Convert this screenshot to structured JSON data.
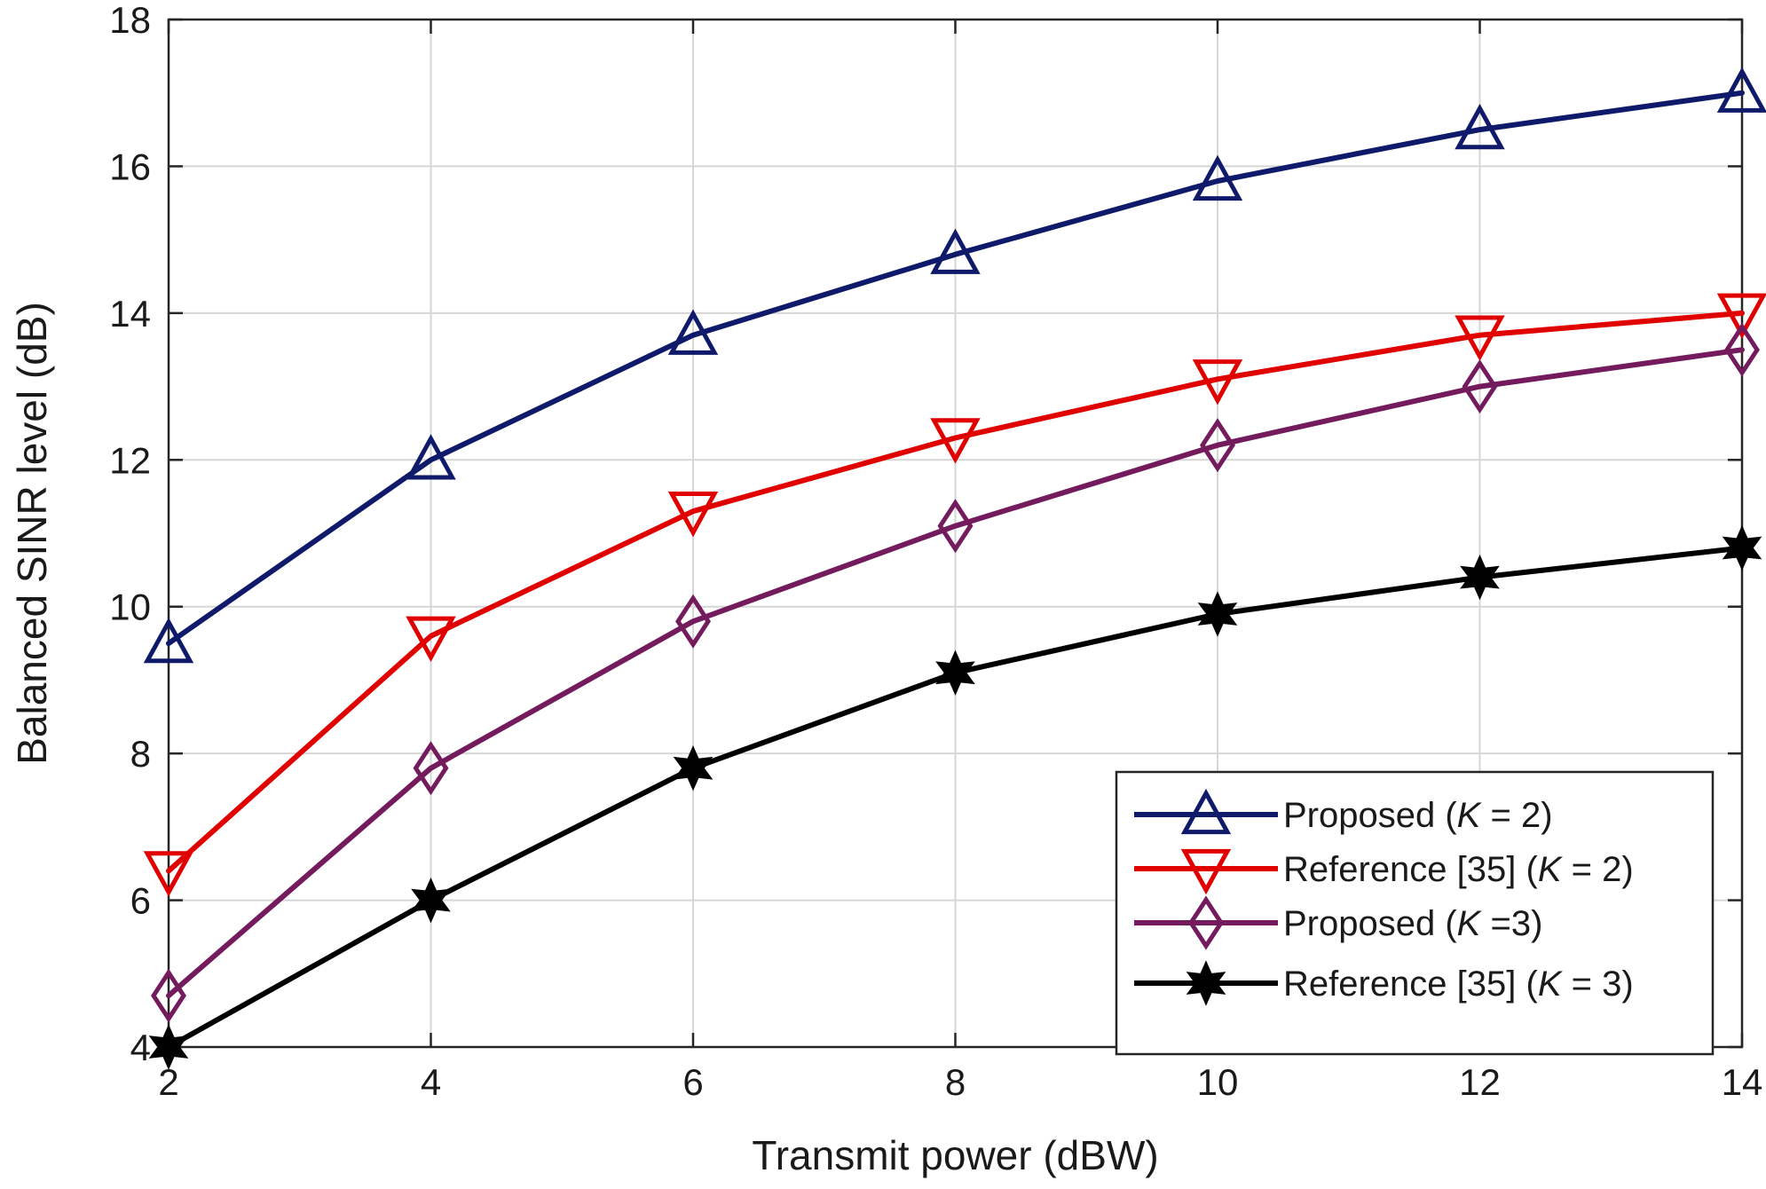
{
  "chart_data": {
    "type": "line",
    "title": "",
    "xlabel": "Transmit power (dBW)",
    "ylabel": "Balanced SINR level (dB)",
    "xlim": [
      2,
      14
    ],
    "ylim": [
      4,
      18
    ],
    "xticks": [
      2,
      4,
      6,
      8,
      10,
      12,
      14
    ],
    "yticks": [
      4,
      6,
      8,
      10,
      12,
      14,
      16,
      18
    ],
    "grid": true,
    "legend_position": "bottom-right",
    "x": [
      2,
      4,
      6,
      8,
      10,
      12,
      14
    ],
    "series": [
      {
        "name": "Proposed (K = 2)",
        "legend": {
          "prefix": "Proposed (",
          "var": "K",
          "suffix": " = 2)"
        },
        "color": "#0f1a6b",
        "marker": "triangle-up",
        "values": [
          9.5,
          12.0,
          13.7,
          14.8,
          15.8,
          16.5,
          17.0
        ]
      },
      {
        "name": "Reference [35] (K = 2)",
        "legend": {
          "prefix": "Reference [35] (",
          "var": "K",
          "suffix": " = 2)"
        },
        "color": "#e00000",
        "marker": "triangle-down",
        "values": [
          6.4,
          9.6,
          11.3,
          12.3,
          13.1,
          13.7,
          14.0
        ]
      },
      {
        "name": "Proposed (K =3)",
        "legend": {
          "prefix": "Proposed (",
          "var": "K",
          "suffix": " =3)"
        },
        "color": "#741b5e",
        "marker": "diamond",
        "values": [
          4.7,
          7.8,
          9.8,
          11.1,
          12.2,
          13.0,
          13.5
        ]
      },
      {
        "name": "Reference [35] (K = 3)",
        "legend": {
          "prefix": "Reference [35] (",
          "var": "K",
          "suffix": " = 3)"
        },
        "color": "#000000",
        "marker": "hexagram",
        "values": [
          4.0,
          6.0,
          7.8,
          9.1,
          9.9,
          10.4,
          10.8
        ]
      }
    ]
  }
}
